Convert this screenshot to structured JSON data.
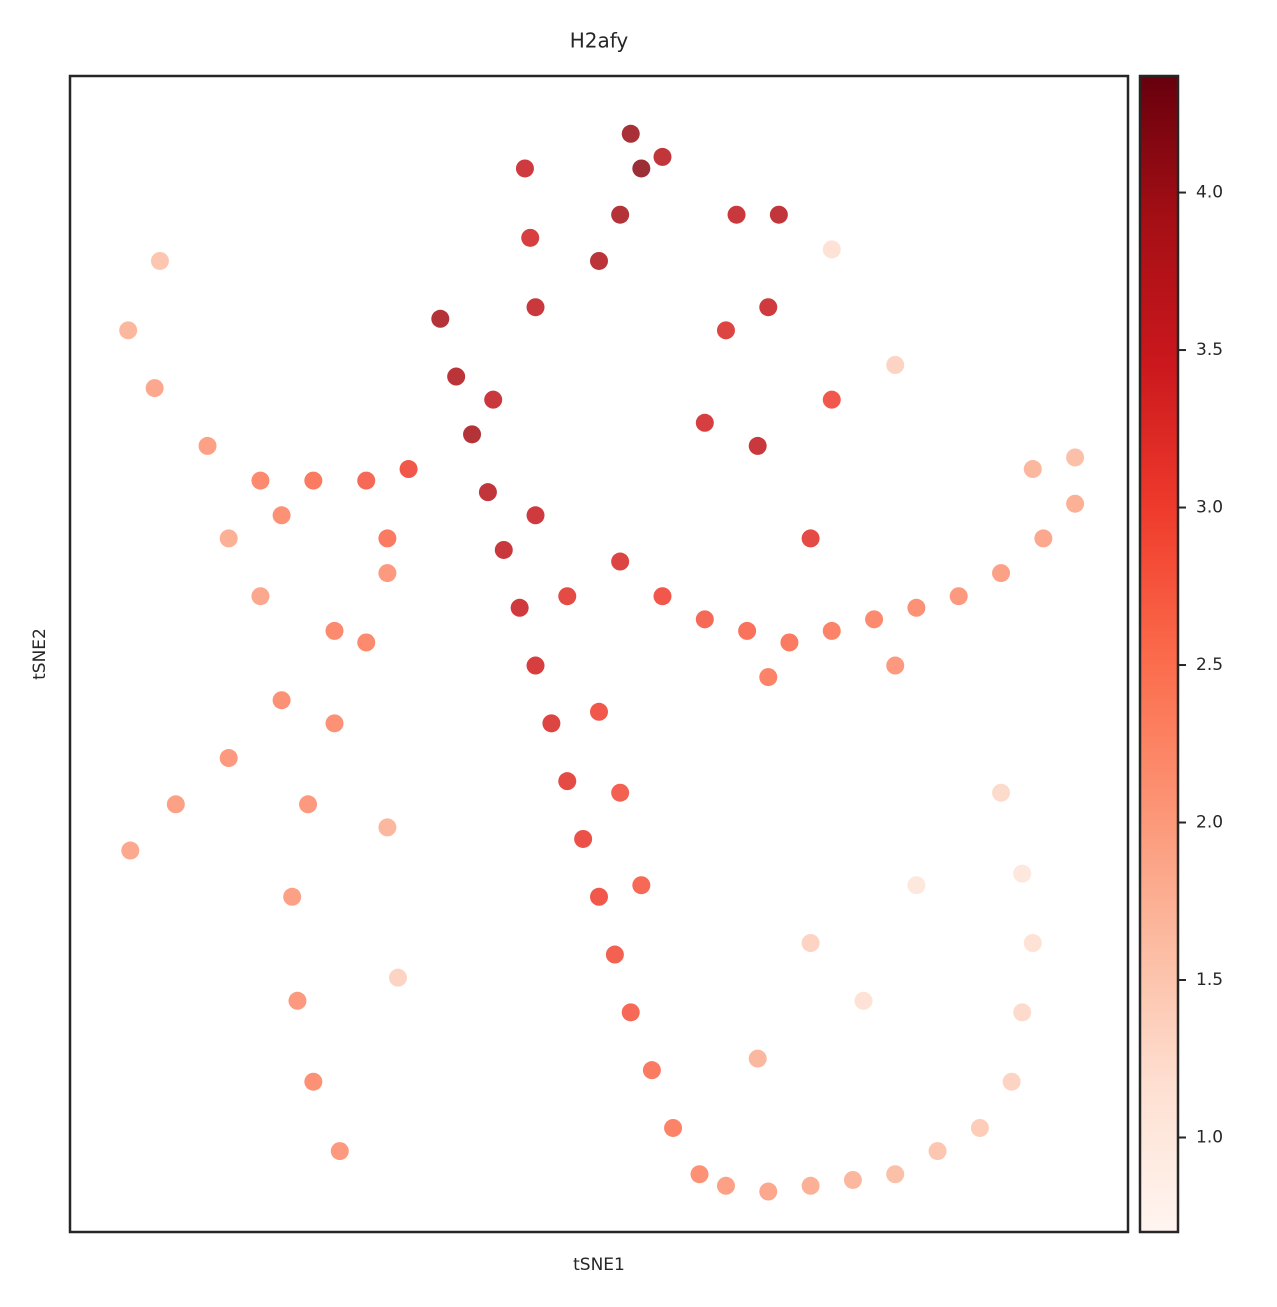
{
  "chart_data": {
    "type": "scatter",
    "title": "H2afy",
    "xlabel": "tSNE1",
    "ylabel": "tSNE2",
    "xlim": [
      0,
      100
    ],
    "ylim": [
      0,
      100
    ],
    "x": [
      35,
      36.5,
      38,
      39.5,
      41,
      42.5,
      44,
      45.5,
      47,
      48.5,
      50,
      51.5,
      53,
      55,
      57,
      59.5,
      40,
      44,
      47,
      50,
      52,
      54,
      52,
      56,
      60,
      64,
      68,
      72,
      76,
      80,
      84,
      88,
      92,
      95,
      91,
      95,
      66,
      78,
      60,
      65,
      70,
      62,
      66,
      78,
      72,
      43,
      43.5,
      44,
      53,
      54,
      52,
      50,
      56,
      63,
      67,
      72,
      62,
      66,
      70,
      74,
      78,
      82,
      86,
      89,
      90,
      91,
      90,
      88,
      70,
      75,
      80,
      65,
      8.5,
      5.5,
      8,
      13,
      18,
      23,
      28,
      32,
      15,
      20,
      5.7,
      10,
      15,
      20,
      25,
      30,
      18,
      25.5,
      23,
      21.5,
      21,
      22.5,
      25,
      28,
      30,
      30,
      31
    ],
    "y": [
      79,
      74,
      69,
      64,
      59,
      54,
      49,
      44,
      39,
      34,
      29,
      24,
      19,
      14,
      9,
      5,
      72,
      62,
      55,
      45,
      38,
      30,
      58,
      55,
      53,
      52,
      51,
      52,
      53,
      54,
      55,
      57,
      60,
      63,
      66,
      67,
      48,
      49,
      70,
      68,
      60,
      78,
      80,
      75,
      72,
      92,
      86,
      80,
      95,
      92,
      88,
      84,
      93,
      88,
      88,
      85,
      4,
      3.5,
      4,
      4.5,
      5,
      7,
      9,
      13,
      19,
      25,
      31,
      38,
      25,
      20,
      30,
      15,
      84,
      78,
      73,
      68,
      65,
      65,
      65,
      66,
      60,
      62,
      33,
      37,
      41,
      46,
      52,
      60,
      55,
      7,
      13,
      20,
      29,
      37,
      44,
      51,
      57,
      35,
      22
    ],
    "values": [
      3.9,
      3.8,
      3.9,
      3.7,
      3.6,
      3.5,
      3.4,
      3.3,
      3.2,
      3.1,
      3.0,
      2.9,
      2.8,
      2.6,
      2.5,
      2.3,
      3.6,
      3.5,
      3.2,
      3.0,
      2.9,
      2.8,
      3.3,
      3.0,
      2.8,
      2.7,
      2.6,
      2.5,
      2.4,
      2.3,
      2.2,
      2.1,
      2.0,
      1.9,
      1.8,
      1.7,
      2.5,
      2.2,
      3.4,
      3.6,
      3.2,
      3.3,
      3.5,
      1.4,
      3.0,
      3.5,
      3.4,
      3.6,
      4.0,
      4.1,
      3.9,
      3.8,
      3.7,
      3.6,
      3.7,
      1.2,
      2.1,
      2.0,
      1.9,
      1.8,
      1.7,
      1.6,
      1.5,
      1.4,
      1.3,
      1.2,
      1.1,
      1.3,
      1.4,
      1.2,
      1.1,
      1.8,
      1.6,
      1.8,
      2.0,
      2.1,
      2.4,
      2.6,
      2.8,
      3.0,
      1.9,
      2.3,
      2.0,
      2.1,
      2.2,
      2.3,
      2.4,
      2.6,
      2.0,
      2.2,
      2.3,
      2.2,
      2.1,
      2.2,
      2.3,
      2.4,
      2.2,
      1.8,
      1.4
    ],
    "clim": [
      0.7,
      4.37
    ],
    "colorbar_ticks": [
      {
        "value": 1,
        "label": "1.0"
      },
      1.5,
      {
        "value": 2,
        "label": "2.0"
      },
      2.5,
      {
        "value": 3,
        "label": "3.0"
      },
      3.5,
      {
        "value": 4,
        "label": "4.0"
      }
    ],
    "colormap": [
      "#fff5f0",
      "#fee0d2",
      "#fcbba1",
      "#fc9272",
      "#fb6a4a",
      "#ef3b2c",
      "#cb181d",
      "#a50f15",
      "#67000d"
    ]
  }
}
